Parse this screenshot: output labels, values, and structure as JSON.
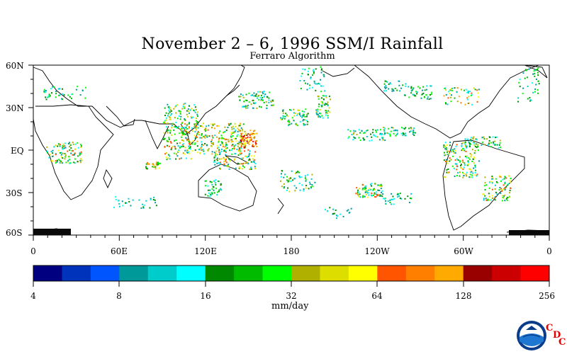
{
  "map": {
    "title": "November 2 – 6, 1996 SSM/I Rainfall",
    "subtitle": "Ferraro Algorithm",
    "lat_labels": [
      "60N",
      "30N",
      "EQ",
      "30S",
      "60S"
    ],
    "lon_labels": [
      "0",
      "60E",
      "120E",
      "180",
      "120W",
      "60W",
      "0"
    ]
  },
  "colorbar": {
    "tick_labels": [
      "4",
      "8",
      "16",
      "32",
      "64",
      "128",
      "256"
    ],
    "unit_label": "mm/day",
    "colors": [
      "#000080",
      "#0033bb",
      "#0055ff",
      "#009999",
      "#00cccc",
      "#00ffff",
      "#008800",
      "#00bb00",
      "#00ff00",
      "#b0b000",
      "#dddd00",
      "#ffff00",
      "#ff5500",
      "#ff8000",
      "#ffaa00",
      "#990000",
      "#cc0000",
      "#ff0000"
    ]
  },
  "branding": {
    "agency_logo_text": "NOAA",
    "cdc_letters": [
      "C",
      "D",
      "C"
    ]
  }
}
